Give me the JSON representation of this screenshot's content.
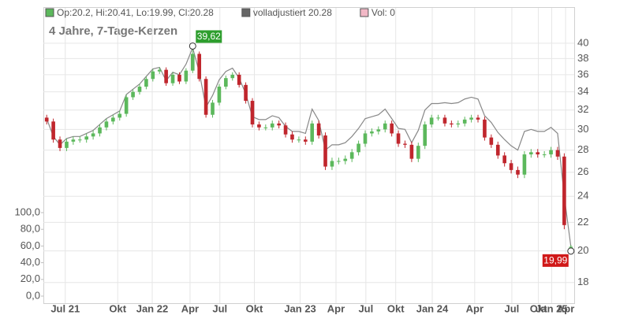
{
  "chart_data": {
    "type": "candlestick",
    "subtitle": "4 Jahre, 7-Tage-Kerzen",
    "legend": [
      {
        "label": "Op:20.2, Hi:20.41, Lo:19.99, Cl:20.28",
        "color": "#5cb85c"
      },
      {
        "label": "volladjustiert  20.28",
        "color": "#666666"
      },
      {
        "label": "Vol: 0",
        "color": "#f2b8c6"
      }
    ],
    "up_color": "#5cb85c",
    "down_color": "#c0262d",
    "line_color": "#888888",
    "log_scale": true,
    "grid": true,
    "ylim": [
      16.8,
      45
    ],
    "yticks": [
      18,
      20,
      22,
      24,
      26,
      28,
      30,
      32,
      34,
      36,
      38,
      40
    ],
    "xlim": [
      -0.5,
      79.5
    ],
    "xticks": [
      {
        "value": 2.8,
        "label": "Jul 21"
      },
      {
        "value": 10.7,
        "label": "Okt"
      },
      {
        "value": 15.9,
        "label": "Jan 22"
      },
      {
        "value": 21.6,
        "label": "Apr"
      },
      {
        "value": 26.1,
        "label": "Jul"
      },
      {
        "value": 31.3,
        "label": "Okt"
      },
      {
        "value": 38.2,
        "label": "Jan 23"
      },
      {
        "value": 43.6,
        "label": "Apr"
      },
      {
        "value": 48.1,
        "label": "Jul"
      },
      {
        "value": 52.6,
        "label": "Okt"
      },
      {
        "value": 58.1,
        "label": "Jan 24"
      },
      {
        "value": 64.5,
        "label": "Apr"
      },
      {
        "value": 70.1,
        "label": "Jul"
      },
      {
        "value": 74.1,
        "label": "Okt"
      },
      {
        "value": 76.1,
        "label": "Jan 25"
      },
      {
        "value": 78.2,
        "label": "Apr"
      }
    ],
    "volume_ylim": [
      0,
      100
    ],
    "volume_ticks": [
      {
        "value": 0,
        "label": "0,0"
      },
      {
        "value": 20,
        "label": "20,0"
      },
      {
        "value": 40,
        "label": "40,0"
      },
      {
        "value": 60,
        "label": "60,0"
      },
      {
        "value": 80,
        "label": "80,0"
      },
      {
        "value": 100,
        "label": "100,0"
      }
    ],
    "open": [
      31.2,
      30.8,
      29.0,
      28.2,
      28.8,
      29.0,
      29.0,
      29.3,
      29.6,
      30.2,
      30.8,
      31.2,
      31.6,
      33.4,
      34.0,
      34.6,
      35.5,
      36.4,
      36.6,
      35.0,
      36.0,
      35.2,
      36.5,
      38.6,
      35.5,
      31.5,
      32.8,
      34.6,
      35.6,
      36.0,
      34.8,
      33.0,
      30.5,
      30.2,
      30.2,
      30.6,
      30.4,
      29.5,
      29.0,
      29.0,
      28.8,
      30.6,
      29.4,
      26.5,
      27.0,
      27.0,
      27.2,
      27.8,
      28.6,
      29.6,
      29.8,
      30.0,
      30.6,
      29.6,
      28.6,
      28.5,
      27.2,
      28.4,
      30.5,
      31.2,
      31.2,
      30.6,
      30.5,
      30.6,
      31.0,
      31.2,
      31.0,
      29.2,
      28.5,
      27.5,
      26.8,
      26.2,
      25.8,
      27.6,
      27.8,
      27.6,
      27.6,
      28.0,
      27.4,
      20.2
    ],
    "high": [
      31.5,
      31.1,
      29.3,
      29.1,
      29.3,
      29.3,
      29.6,
      29.9,
      30.5,
      31.1,
      31.5,
      31.9,
      33.7,
      34.3,
      34.9,
      35.8,
      36.7,
      36.9,
      36.9,
      36.3,
      36.3,
      36.8,
      39.62,
      38.9,
      35.8,
      33.1,
      34.9,
      35.9,
      36.3,
      36.3,
      35.1,
      33.3,
      30.8,
      30.5,
      30.9,
      30.9,
      30.7,
      29.8,
      29.3,
      29.3,
      30.9,
      30.9,
      29.7,
      27.3,
      27.3,
      27.5,
      28.1,
      28.9,
      29.9,
      30.1,
      30.3,
      30.9,
      30.9,
      29.9,
      28.9,
      28.8,
      28.7,
      30.8,
      31.5,
      31.5,
      31.5,
      30.9,
      30.9,
      31.3,
      31.5,
      31.5,
      31.3,
      29.5,
      28.8,
      27.8,
      27.1,
      26.5,
      27.9,
      28.1,
      28.1,
      27.9,
      28.3,
      28.3,
      27.7,
      20.41
    ],
    "low": [
      30.5,
      28.7,
      27.9,
      27.9,
      28.5,
      28.7,
      28.7,
      29.0,
      29.3,
      29.9,
      30.5,
      30.9,
      31.3,
      33.1,
      33.7,
      34.3,
      35.2,
      36.1,
      34.7,
      34.7,
      34.9,
      34.9,
      36.2,
      35.2,
      31.2,
      31.2,
      32.5,
      34.3,
      35.3,
      34.5,
      32.7,
      30.2,
      29.9,
      29.9,
      29.9,
      30.1,
      29.2,
      28.7,
      28.7,
      28.5,
      28.5,
      29.1,
      26.2,
      26.2,
      26.7,
      26.7,
      26.9,
      27.5,
      28.3,
      29.3,
      29.5,
      29.7,
      29.3,
      28.3,
      28.2,
      26.9,
      26.9,
      28.1,
      30.2,
      30.9,
      30.3,
      30.2,
      30.2,
      30.3,
      30.7,
      30.7,
      28.9,
      28.2,
      27.2,
      26.5,
      25.9,
      25.5,
      25.5,
      27.3,
      27.3,
      27.3,
      27.3,
      27.1,
      21.5,
      19.99
    ],
    "close": [
      30.8,
      29.0,
      28.2,
      28.8,
      29.0,
      29.0,
      29.3,
      29.6,
      30.2,
      30.8,
      31.2,
      31.6,
      33.4,
      34.0,
      34.6,
      35.5,
      36.4,
      36.6,
      35.0,
      36.0,
      35.2,
      36.5,
      38.6,
      35.5,
      31.5,
      32.8,
      34.6,
      35.6,
      36.0,
      34.8,
      33.0,
      30.5,
      30.2,
      30.2,
      30.6,
      30.4,
      29.5,
      29.0,
      29.0,
      28.8,
      30.6,
      29.4,
      26.5,
      27.0,
      27.0,
      27.2,
      27.8,
      28.6,
      29.6,
      29.8,
      30.0,
      30.6,
      29.6,
      28.6,
      28.5,
      27.2,
      28.4,
      30.5,
      31.2,
      31.2,
      30.6,
      30.5,
      30.6,
      31.0,
      31.2,
      31.0,
      29.2,
      28.5,
      27.5,
      26.8,
      26.2,
      25.8,
      27.6,
      27.8,
      27.6,
      27.6,
      28.0,
      27.4,
      21.8,
      20.28
    ],
    "adjusted": [
      31.1,
      29.3,
      28.5,
      29.1,
      29.3,
      29.3,
      29.6,
      29.9,
      30.5,
      31.1,
      31.5,
      31.9,
      33.7,
      34.3,
      34.9,
      35.8,
      36.7,
      36.9,
      35.3,
      36.3,
      36.0,
      37.3,
      39.4,
      36.3,
      32.3,
      33.6,
      35.4,
      36.4,
      36.8,
      35.6,
      33.8,
      31.3,
      31.0,
      31.0,
      31.4,
      31.2,
      30.3,
      29.8,
      29.8,
      29.6,
      32.1,
      30.9,
      28.0,
      28.5,
      28.5,
      28.7,
      29.3,
      30.1,
      31.1,
      31.3,
      31.5,
      32.1,
      31.1,
      30.1,
      30.0,
      28.7,
      29.9,
      32.0,
      32.7,
      32.7,
      32.8,
      32.7,
      32.8,
      33.2,
      33.4,
      33.2,
      31.4,
      30.7,
      29.7,
      29.0,
      28.4,
      28.0,
      29.8,
      30.0,
      29.8,
      29.8,
      30.2,
      29.6,
      24.0,
      20.28
    ],
    "annotations": [
      {
        "index": 22,
        "value": 39.62,
        "label": "39,62",
        "color": "#2e9e2e"
      },
      {
        "index": 79,
        "value": 19.99,
        "label": "19,99",
        "color": "#d01818"
      }
    ]
  }
}
